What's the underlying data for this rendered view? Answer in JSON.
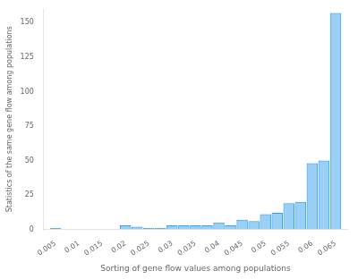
{
  "chart_data": {
    "type": "bar",
    "x": [
      0.005,
      0.0075,
      0.01,
      0.0125,
      0.015,
      0.0175,
      0.02,
      0.0225,
      0.025,
      0.0275,
      0.03,
      0.0325,
      0.035,
      0.0375,
      0.04,
      0.0425,
      0.045,
      0.0475,
      0.05,
      0.0525,
      0.055,
      0.0575,
      0.06,
      0.0625,
      0.065
    ],
    "values": [
      1,
      0,
      0,
      0,
      0,
      0,
      3,
      2,
      1,
      1,
      3,
      3,
      3,
      3,
      5,
      3,
      7,
      6,
      11,
      12,
      19,
      20,
      48,
      50,
      157
    ],
    "xlabel": "Sorting of gene flow values among populations",
    "ylabel": "Statistics of the same gene flow among populations",
    "xlim": [
      0.0025,
      0.0675
    ],
    "ylim": [
      0,
      160
    ],
    "xticks": [
      0.005,
      0.01,
      0.015,
      0.02,
      0.025,
      0.03,
      0.035,
      0.04,
      0.045,
      0.05,
      0.055,
      0.06,
      0.065
    ],
    "yticks": [
      0,
      25,
      50,
      75,
      100,
      125,
      150
    ],
    "grid": false
  }
}
